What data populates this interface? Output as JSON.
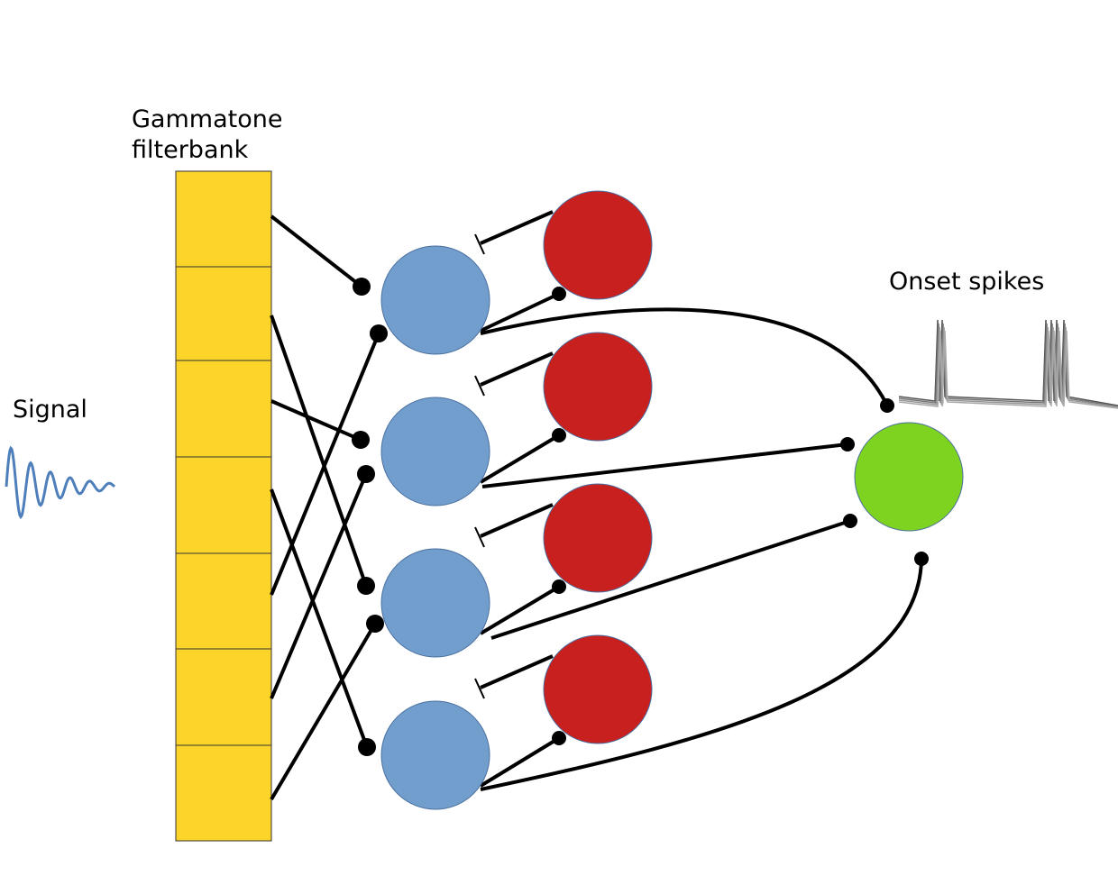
{
  "labels": {
    "filterbank": [
      "Gammatone",
      "filterbank"
    ],
    "signal": "Signal",
    "onset_spikes": "Onset spikes"
  }
}
